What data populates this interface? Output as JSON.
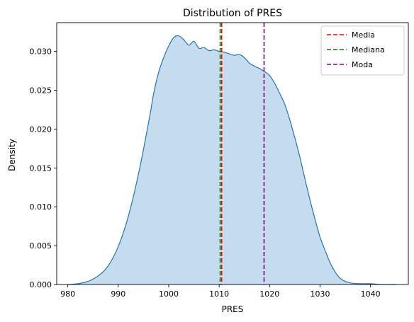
{
  "chart_data": {
    "type": "area",
    "title": "Distribution of PRES",
    "xlabel": "PRES",
    "ylabel": "Density",
    "xlim": [
      977.8,
      1047.5
    ],
    "ylim": [
      0,
      0.0337
    ],
    "xticks": [
      980,
      990,
      1000,
      1010,
      1020,
      1030,
      1040
    ],
    "xtick_labels": [
      "980",
      "990",
      "1000",
      "1010",
      "1020",
      "1030",
      "1040"
    ],
    "yticks": [
      0.0,
      0.005,
      0.01,
      0.015,
      0.02,
      0.025,
      0.03
    ],
    "ytick_labels": [
      "0.000",
      "0.005",
      "0.010",
      "0.015",
      "0.020",
      "0.025",
      "0.030"
    ],
    "grid": false,
    "legend_position": "top-right",
    "series": [
      {
        "name": "",
        "color": "#1f77b4",
        "fill_color": "#c5dbee",
        "x": [
          980.0,
          982.0,
          984.0,
          986.0,
          988.0,
          990.0,
          992.0,
          994.0,
          996.0,
          997.0,
          998.0,
          999.0,
          1000.0,
          1001.0,
          1002.0,
          1003.0,
          1004.0,
          1005.0,
          1006.0,
          1007.0,
          1008.0,
          1009.0,
          1010.0,
          1011.0,
          1012.0,
          1013.0,
          1014.0,
          1015.0,
          1016.0,
          1017.0,
          1018.0,
          1019.0,
          1020.0,
          1021.0,
          1022.0,
          1023.0,
          1024.0,
          1025.0,
          1026.0,
          1027.0,
          1028.0,
          1029.0,
          1030.0,
          1031.0,
          1032.0,
          1033.0,
          1034.0,
          1035.0,
          1036.0,
          1038.0,
          1040.0,
          1042.0,
          1045.0
        ],
        "y": [
          0.0,
          0.0001,
          0.0004,
          0.0011,
          0.0024,
          0.0049,
          0.0088,
          0.0142,
          0.0208,
          0.0245,
          0.0273,
          0.0292,
          0.0307,
          0.0318,
          0.032,
          0.0315,
          0.0308,
          0.0313,
          0.0304,
          0.0305,
          0.0301,
          0.0302,
          0.03,
          0.0299,
          0.0297,
          0.0295,
          0.0296,
          0.0292,
          0.0285,
          0.0281,
          0.0278,
          0.0274,
          0.0269,
          0.0259,
          0.0246,
          0.0232,
          0.0212,
          0.0189,
          0.0164,
          0.0136,
          0.0109,
          0.0084,
          0.0061,
          0.0044,
          0.0028,
          0.0016,
          0.0008,
          0.0004,
          0.0002,
          0.0001,
          0.0001,
          0.0,
          0.0
        ]
      }
    ],
    "vlines": [
      {
        "name": "Media",
        "x": 1010.5,
        "color": "#ff0000"
      },
      {
        "name": "Mediana",
        "x": 1010.2,
        "color": "#008000"
      },
      {
        "name": "Moda",
        "x": 1018.9,
        "color": "#800080"
      }
    ]
  }
}
